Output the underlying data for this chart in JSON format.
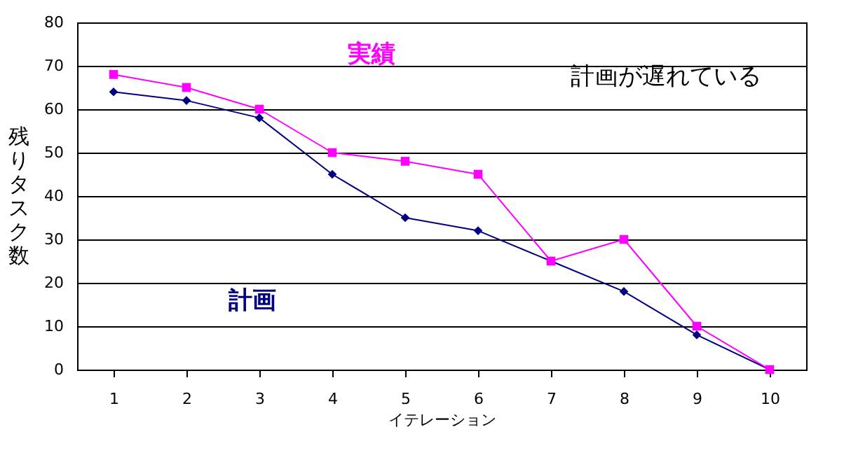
{
  "chart_data": {
    "type": "line",
    "xlabel": "イテレーション",
    "ylabel": "残りタスク数",
    "categories": [
      "1",
      "2",
      "3",
      "4",
      "5",
      "6",
      "7",
      "8",
      "9",
      "10"
    ],
    "series": [
      {
        "name": "計画",
        "color": "#000080",
        "marker": "diamond",
        "values": [
          64,
          62,
          58,
          45,
          35,
          32,
          25,
          18,
          8,
          0
        ]
      },
      {
        "name": "実績",
        "color": "#ff00ff",
        "marker": "square",
        "values": [
          68,
          65,
          60,
          50,
          48,
          45,
          25,
          30,
          10,
          0
        ]
      }
    ],
    "ylim": [
      0,
      80
    ],
    "yticks": [
      0,
      10,
      20,
      30,
      40,
      50,
      60,
      70,
      80
    ],
    "grid": "y",
    "annotations": [
      "計画が遅れている"
    ]
  }
}
